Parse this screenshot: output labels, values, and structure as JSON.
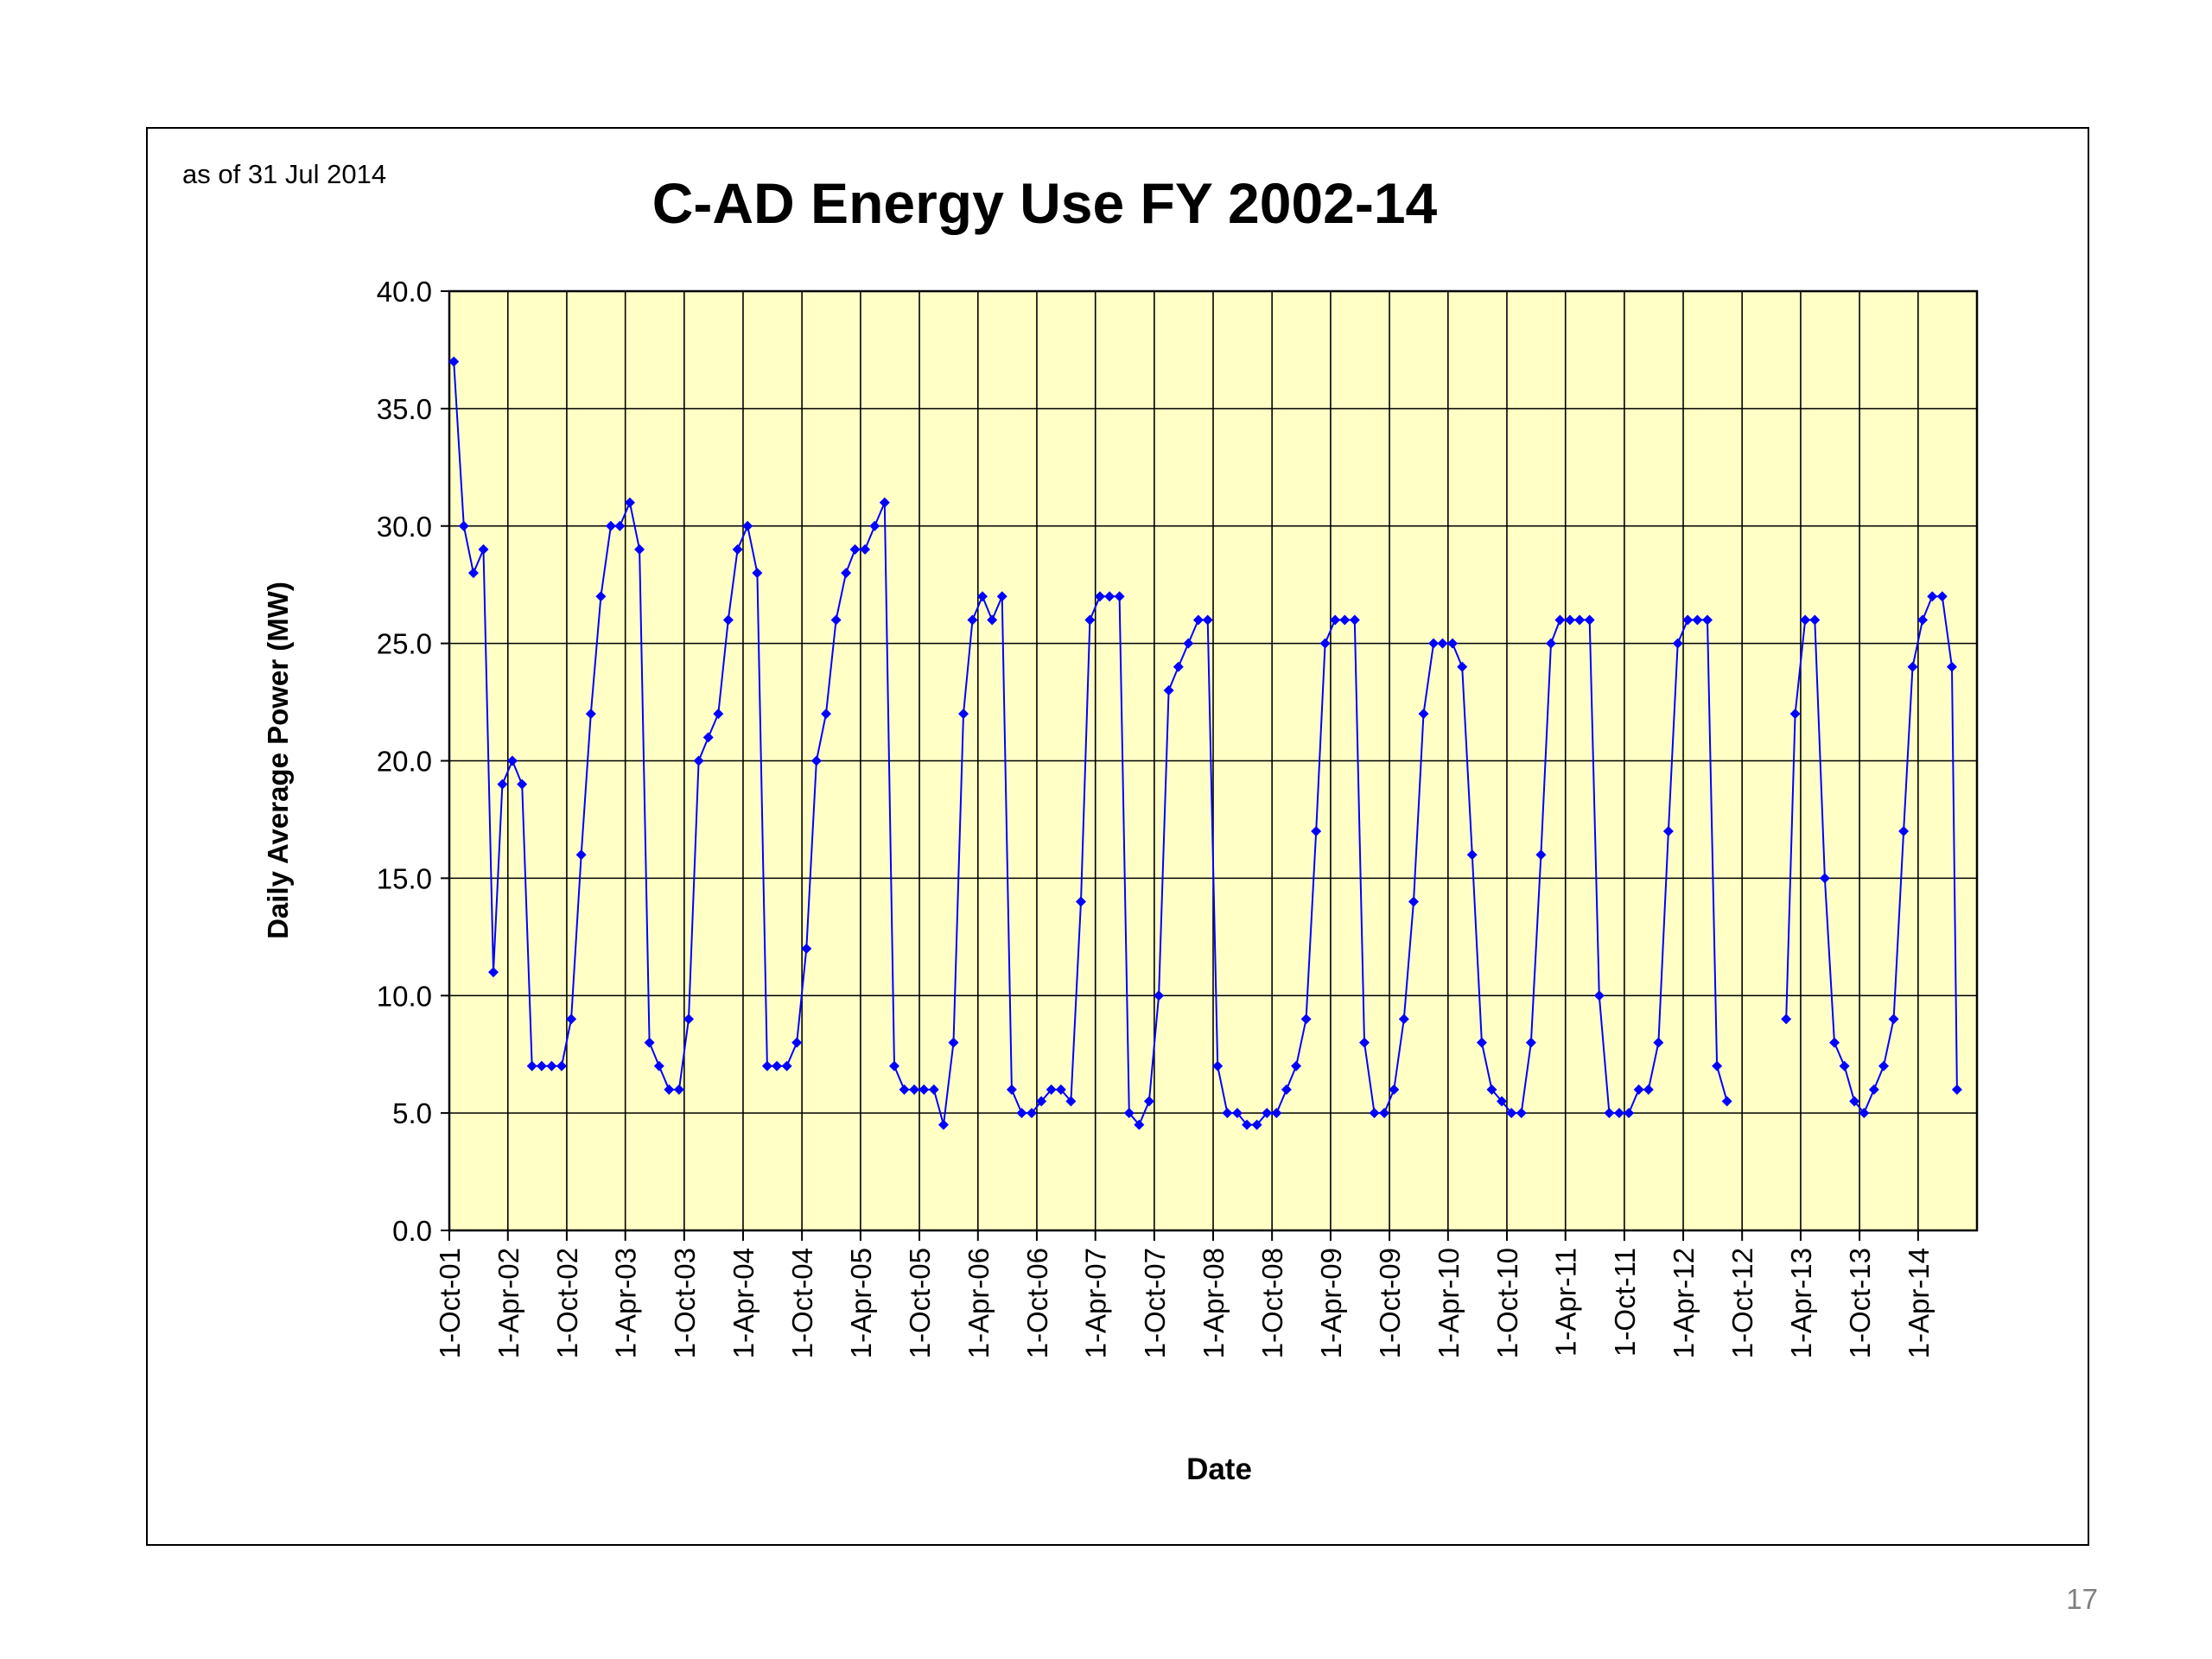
{
  "slide_number": "17",
  "chart_data": {
    "type": "line",
    "title": "C-AD Energy Use FY 2002-14",
    "annotation": "as of 31 Jul 2014",
    "x_label": "Date",
    "y_label": "Daily Average  Power (MW)",
    "color": "#0000ff",
    "ylim": [
      0,
      40
    ],
    "yticks": [
      {
        "value": 0,
        "label": "0.0"
      },
      {
        "value": 5,
        "label": "5.0"
      },
      {
        "value": 10,
        "label": "10.0"
      },
      {
        "value": 15,
        "label": "15.0"
      },
      {
        "value": 20,
        "label": "20.0"
      },
      {
        "value": 25,
        "label": "25.0"
      },
      {
        "value": 30,
        "label": "30.0"
      },
      {
        "value": 35,
        "label": "35.0"
      },
      {
        "value": 40,
        "label": "40.0"
      }
    ],
    "xlim": [
      "2001-10-01",
      "2014-10-01"
    ],
    "xticks": [
      {
        "value": "2001-10-01",
        "label": "1-Oct-01"
      },
      {
        "value": "2002-04-01",
        "label": "1-Apr-02"
      },
      {
        "value": "2002-10-01",
        "label": "1-Oct-02"
      },
      {
        "value": "2003-04-01",
        "label": "1-Apr-03"
      },
      {
        "value": "2003-10-01",
        "label": "1-Oct-03"
      },
      {
        "value": "2004-04-01",
        "label": "1-Apr-04"
      },
      {
        "value": "2004-10-01",
        "label": "1-Oct-04"
      },
      {
        "value": "2005-04-01",
        "label": "1-Apr-05"
      },
      {
        "value": "2005-10-01",
        "label": "1-Oct-05"
      },
      {
        "value": "2006-04-01",
        "label": "1-Apr-06"
      },
      {
        "value": "2006-10-01",
        "label": "1-Oct-06"
      },
      {
        "value": "2007-04-01",
        "label": "1-Apr-07"
      },
      {
        "value": "2007-10-01",
        "label": "1-Oct-07"
      },
      {
        "value": "2008-04-01",
        "label": "1-Apr-08"
      },
      {
        "value": "2008-10-01",
        "label": "1-Oct-08"
      },
      {
        "value": "2009-04-01",
        "label": "1-Apr-09"
      },
      {
        "value": "2009-10-01",
        "label": "1-Oct-09"
      },
      {
        "value": "2010-04-01",
        "label": "1-Apr-10"
      },
      {
        "value": "2010-10-01",
        "label": "1-Oct-10"
      },
      {
        "value": "2011-04-01",
        "label": "1-Apr-11"
      },
      {
        "value": "2011-10-01",
        "label": "1-Oct-11"
      },
      {
        "value": "2012-04-01",
        "label": "1-Apr-12"
      },
      {
        "value": "2012-10-01",
        "label": "1-Oct-12"
      },
      {
        "value": "2013-04-01",
        "label": "1-Apr-13"
      },
      {
        "value": "2013-10-01",
        "label": "1-Oct-13"
      },
      {
        "value": "2014-04-01",
        "label": "1-Apr-14"
      }
    ],
    "grid": true,
    "x": [
      "2001-10-15",
      "2001-11-15",
      "2001-12-15",
      "2002-01-15",
      "2002-02-15",
      "2002-03-15",
      "2002-04-15",
      "2002-05-15",
      "2002-06-15",
      "2002-07-15",
      "2002-08-15",
      "2002-09-15",
      "2002-10-15",
      "2002-11-15",
      "2002-12-15",
      "2003-01-15",
      "2003-02-15",
      "2003-03-15",
      "2003-04-15",
      "2003-05-15",
      "2003-06-15",
      "2003-07-15",
      "2003-08-15",
      "2003-09-15",
      "2003-10-15",
      "2003-11-15",
      "2003-12-15",
      "2004-01-15",
      "2004-02-15",
      "2004-03-15",
      "2004-04-15",
      "2004-05-15",
      "2004-06-15",
      "2004-07-15",
      "2004-08-15",
      "2004-09-15",
      "2004-10-15",
      "2004-11-15",
      "2004-12-15",
      "2005-01-15",
      "2005-02-15",
      "2005-03-15",
      "2005-04-15",
      "2005-05-15",
      "2005-06-15",
      "2005-07-15",
      "2005-08-15",
      "2005-09-15",
      "2005-10-15",
      "2005-11-15",
      "2005-12-15",
      "2006-01-15",
      "2006-02-15",
      "2006-03-15",
      "2006-04-15",
      "2006-05-15",
      "2006-06-15",
      "2006-07-15",
      "2006-08-15",
      "2006-09-15",
      "2006-10-15",
      "2006-11-15",
      "2006-12-15",
      "2007-01-15",
      "2007-02-15",
      "2007-03-15",
      "2007-04-15",
      "2007-05-15",
      "2007-06-15",
      "2007-07-15",
      "2007-08-15",
      "2007-09-15",
      "2007-10-15",
      "2007-11-15",
      "2007-12-15",
      "2008-01-15",
      "2008-02-15",
      "2008-03-15",
      "2008-04-15",
      "2008-05-15",
      "2008-06-15",
      "2008-07-15",
      "2008-08-15",
      "2008-09-15",
      "2008-10-15",
      "2008-11-15",
      "2008-12-15",
      "2009-01-15",
      "2009-02-15",
      "2009-03-15",
      "2009-04-15",
      "2009-05-15",
      "2009-06-15",
      "2009-07-15",
      "2009-08-15",
      "2009-09-15",
      "2009-10-15",
      "2009-11-15",
      "2009-12-15",
      "2010-01-15",
      "2010-02-15",
      "2010-03-15",
      "2010-04-15",
      "2010-05-15",
      "2010-06-15",
      "2010-07-15",
      "2010-08-15",
      "2010-09-15",
      "2010-10-15",
      "2010-11-15",
      "2010-12-15",
      "2011-01-15",
      "2011-02-15",
      "2011-03-15",
      "2011-04-15",
      "2011-05-15",
      "2011-06-15",
      "2011-07-15",
      "2011-08-15",
      "2011-09-15",
      "2011-10-15",
      "2011-11-15",
      "2011-12-15",
      "2012-01-15",
      "2012-02-15",
      "2012-03-15",
      "2012-04-15",
      "2012-05-15",
      "2012-06-15",
      "2012-07-15",
      "2012-08-15",
      "2012-09-15",
      "2012-10-15",
      "2012-11-15",
      "2012-12-15",
      "2013-01-15",
      "2013-02-15",
      "2013-03-15",
      "2013-04-15",
      "2013-05-15",
      "2013-06-15",
      "2013-07-15",
      "2013-08-15",
      "2013-09-15",
      "2013-10-15",
      "2013-11-15",
      "2013-12-15",
      "2014-01-15",
      "2014-02-15",
      "2014-03-15",
      "2014-04-15",
      "2014-05-15",
      "2014-06-15",
      "2014-07-15",
      "2014-07-31"
    ],
    "values": [
      37,
      30,
      28,
      29,
      11,
      19,
      20,
      19,
      7,
      7,
      7,
      7,
      9,
      16,
      22,
      27,
      30,
      30,
      31,
      29,
      8,
      7,
      6,
      6,
      9,
      20,
      21,
      22,
      26,
      29,
      30,
      28,
      7,
      7,
      7,
      8,
      12,
      20,
      22,
      26,
      28,
      29,
      29,
      30,
      31,
      7,
      6,
      6,
      6,
      6,
      4.5,
      8,
      22,
      26,
      27,
      26,
      27,
      6,
      5,
      5,
      5.5,
      6,
      6,
      5.5,
      14,
      26,
      27,
      27,
      27,
      5,
      4.5,
      5.5,
      10,
      23,
      24,
      25,
      26,
      26,
      7,
      5,
      5,
      4.5,
      4.5,
      5,
      5,
      6,
      7,
      9,
      17,
      25,
      26,
      26,
      26,
      8,
      5,
      5,
      6,
      9,
      14,
      22,
      25,
      25,
      25,
      24,
      16,
      8,
      6,
      5.5,
      5,
      5,
      8,
      16,
      25,
      26,
      26,
      26,
      26,
      10,
      5,
      5,
      5,
      6,
      6,
      8,
      17,
      25,
      26,
      26,
      26,
      7,
      5.5,
      null,
      null,
      null,
      null,
      null,
      9,
      22,
      26,
      26,
      15,
      8,
      7,
      5.5,
      5,
      6,
      7,
      9,
      17,
      24,
      26,
      27,
      27,
      24,
      6
    ]
  }
}
